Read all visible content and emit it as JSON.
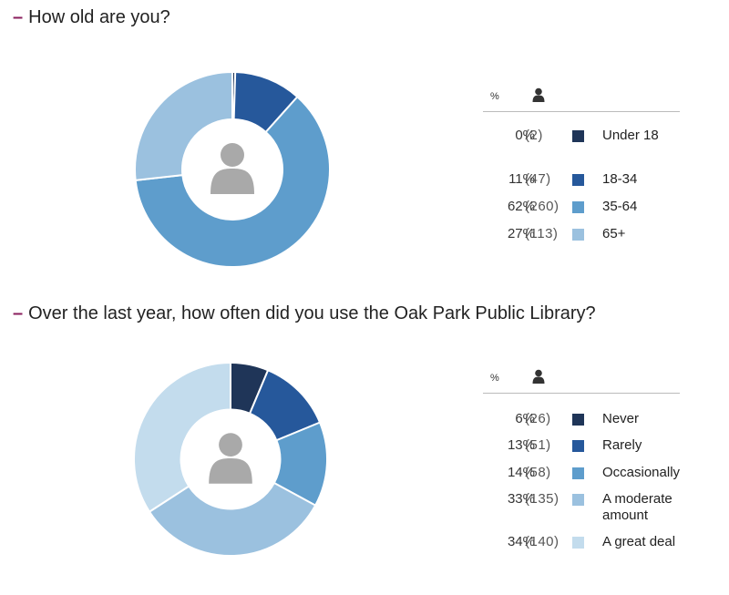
{
  "questions": [
    {
      "title": "How old are you?",
      "legend_header": {
        "percent": "%"
      },
      "chart_data": {
        "type": "pie",
        "categories": [
          "Under 18",
          "18-34",
          "35-64",
          "65+"
        ],
        "values": [
          2,
          47,
          260,
          113
        ],
        "percents": [
          "0%",
          "11%",
          "62%",
          "27%"
        ],
        "counts": [
          "(2)",
          "(47)",
          "(260)",
          "(113)"
        ],
        "colors": [
          "#1f3558",
          "#26589b",
          "#5e9dcc",
          "#9bc1df"
        ]
      }
    },
    {
      "title": "Over the last year, how often did you use the Oak Park Public Library?",
      "legend_header": {
        "percent": "%"
      },
      "chart_data": {
        "type": "pie",
        "categories": [
          "Never",
          "Rarely",
          "Occasionally",
          "A moderate amount",
          "A great deal"
        ],
        "values": [
          26,
          51,
          58,
          135,
          140
        ],
        "percents": [
          "6%",
          "13%",
          "14%",
          "33%",
          "34%"
        ],
        "counts": [
          "(26)",
          "(51)",
          "(58)",
          "(135)",
          "(140)"
        ],
        "colors": [
          "#1f3558",
          "#26589b",
          "#5e9dcc",
          "#9bc1df",
          "#c3dced"
        ]
      }
    }
  ]
}
